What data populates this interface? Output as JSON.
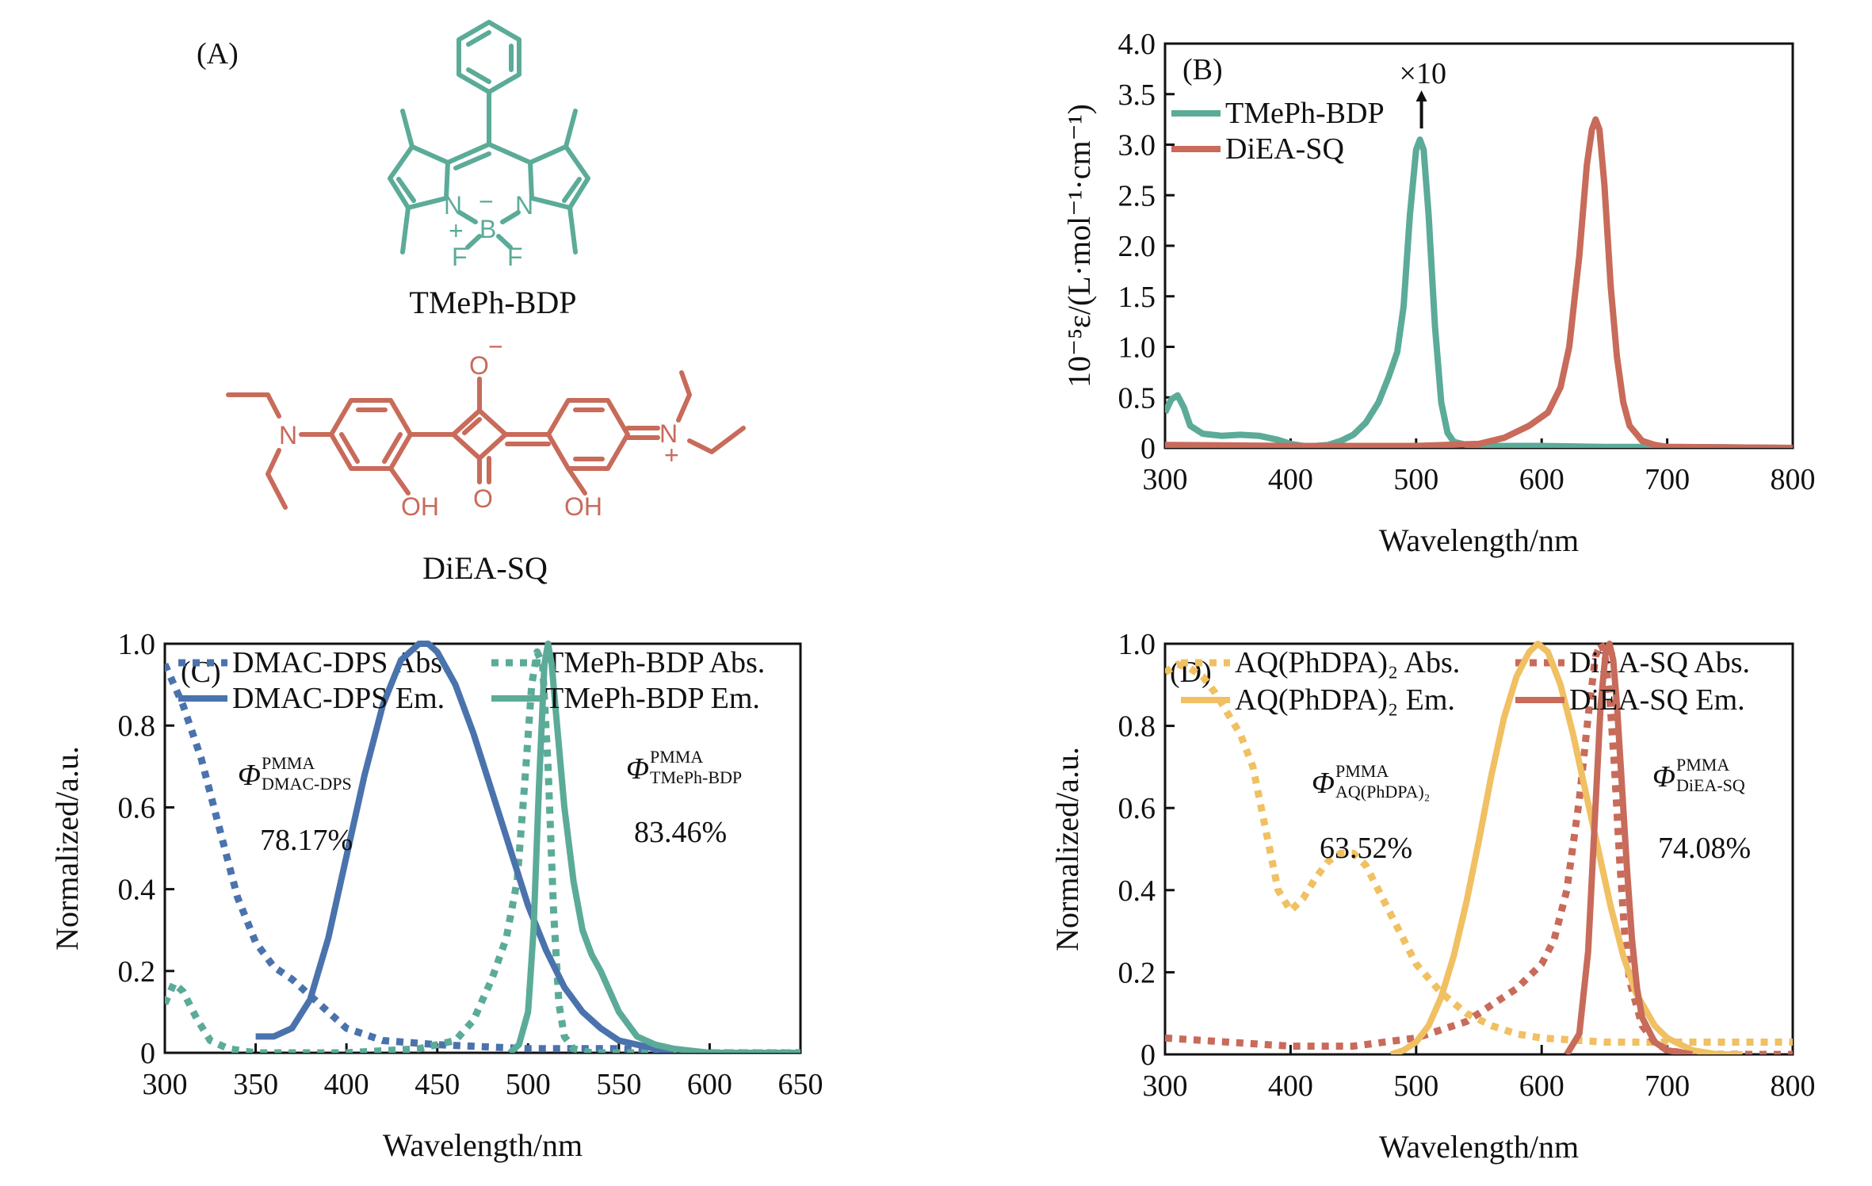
{
  "figure": {
    "panelA": {
      "letter": "(A)",
      "compound1": {
        "name": "TMePh-BDP",
        "color": "#5bab98",
        "atoms": {
          "n1": "N",
          "n2": "N",
          "b": "B",
          "f1": "F",
          "f2": "F",
          "plus": "+",
          "minus": "−"
        }
      },
      "compound2": {
        "name": "DiEA-SQ",
        "color": "#c86b5a",
        "atoms": {
          "n1": "N",
          "n2": "N",
          "o_top": "O",
          "o_top_charge": "−",
          "o_bottom": "O",
          "oh1": "OH",
          "oh2": "OH",
          "plus": "+"
        }
      }
    }
  },
  "chart_data": [
    {
      "id": "B",
      "type": "line",
      "letter": "(B)",
      "xlabel": "Wavelength/nm",
      "ylabel": "10⁻⁵ε/(L·mol⁻¹·cm⁻¹)",
      "xlim": [
        300,
        800
      ],
      "ylim": [
        0,
        4.0
      ],
      "xticks": [
        300,
        400,
        500,
        600,
        700,
        800
      ],
      "yticks": [
        0,
        0.5,
        1.0,
        1.5,
        2.0,
        2.5,
        3.0,
        3.5,
        4.0
      ],
      "ytick_labels": [
        "0",
        "0.5",
        "1.0",
        "1.5",
        "2.0",
        "2.5",
        "3.0",
        "3.5",
        "4.0"
      ],
      "annotation": "×10",
      "series": [
        {
          "name": "TMePh-BDP",
          "color": "#5bab98",
          "dash": "solid",
          "x": [
            300,
            305,
            310,
            315,
            320,
            330,
            345,
            360,
            375,
            390,
            400,
            410,
            420,
            430,
            440,
            450,
            460,
            470,
            478,
            485,
            490,
            495,
            500,
            503,
            506,
            510,
            515,
            520,
            525,
            530,
            540,
            560,
            600,
            650,
            700,
            800
          ],
          "y": [
            0.35,
            0.48,
            0.52,
            0.4,
            0.22,
            0.14,
            0.12,
            0.13,
            0.12,
            0.08,
            0.04,
            0.02,
            0.02,
            0.03,
            0.07,
            0.13,
            0.25,
            0.45,
            0.7,
            0.95,
            1.4,
            2.3,
            2.95,
            3.05,
            2.95,
            2.3,
            1.2,
            0.45,
            0.15,
            0.06,
            0.03,
            0.02,
            0.02,
            0.01,
            0.01,
            0.0
          ]
        },
        {
          "name": "DiEA-SQ",
          "color": "#c86b5a",
          "dash": "solid",
          "x": [
            300,
            400,
            500,
            550,
            570,
            590,
            605,
            615,
            622,
            630,
            636,
            640,
            643,
            646,
            650,
            655,
            660,
            665,
            670,
            680,
            690,
            700,
            800
          ],
          "y": [
            0.03,
            0.02,
            0.02,
            0.04,
            0.1,
            0.22,
            0.35,
            0.6,
            1.0,
            1.9,
            2.8,
            3.15,
            3.25,
            3.15,
            2.6,
            1.6,
            0.9,
            0.45,
            0.22,
            0.07,
            0.03,
            0.01,
            0.0
          ]
        }
      ]
    },
    {
      "id": "C",
      "type": "line",
      "letter": "(C)",
      "xlabel": "Wavelength/nm",
      "ylabel": "Normalized/a.u.",
      "xlim": [
        300,
        650
      ],
      "ylim": [
        0,
        1.0
      ],
      "xticks": [
        300,
        350,
        400,
        450,
        500,
        550,
        600,
        650
      ],
      "yticks": [
        0,
        0.2,
        0.4,
        0.6,
        0.8,
        1.0
      ],
      "ytick_labels": [
        "0",
        "0.2",
        "0.4",
        "0.6",
        "0.8",
        "1.0"
      ],
      "annotations": [
        {
          "symbol": "Φ",
          "sup": "PMMA",
          "sub": "DMAC-DPS",
          "value": "78.17%"
        },
        {
          "symbol": "Φ",
          "sup": "PMMA",
          "sub": "TMePh-BDP",
          "value": "83.46%"
        }
      ],
      "series": [
        {
          "name": "DMAC-DPS Abs.",
          "color": "#4a73ad",
          "dash": "dot",
          "x": [
            300,
            310,
            320,
            330,
            340,
            350,
            360,
            370,
            380,
            390,
            400,
            420,
            450,
            500,
            550,
            600,
            650
          ],
          "y": [
            0.95,
            0.85,
            0.72,
            0.55,
            0.38,
            0.27,
            0.21,
            0.18,
            0.14,
            0.1,
            0.06,
            0.03,
            0.02,
            0.01,
            0.01,
            0.0,
            0.0
          ]
        },
        {
          "name": "TMePh-BDP Abs.",
          "color": "#5bab98",
          "dash": "dot",
          "x": [
            300,
            305,
            310,
            318,
            325,
            335,
            350,
            400,
            440,
            460,
            470,
            480,
            488,
            494,
            498,
            502,
            505,
            508,
            511,
            514,
            517,
            520,
            525,
            535,
            560,
            650
          ],
          "y": [
            0.12,
            0.17,
            0.15,
            0.08,
            0.03,
            0.01,
            0.0,
            0.0,
            0.01,
            0.03,
            0.08,
            0.18,
            0.28,
            0.42,
            0.65,
            0.9,
            0.98,
            0.95,
            0.7,
            0.35,
            0.12,
            0.04,
            0.01,
            0.0,
            0.0,
            0.0
          ]
        },
        {
          "name": "DMAC-DPS Em.",
          "color": "#4a73ad",
          "dash": "solid",
          "x": [
            350,
            360,
            370,
            380,
            390,
            400,
            410,
            420,
            430,
            440,
            445,
            450,
            460,
            470,
            480,
            490,
            500,
            510,
            520,
            530,
            540,
            550,
            560,
            570,
            580
          ],
          "y": [
            0.04,
            0.04,
            0.06,
            0.13,
            0.28,
            0.48,
            0.68,
            0.85,
            0.96,
            1.0,
            1.0,
            0.98,
            0.9,
            0.78,
            0.64,
            0.5,
            0.36,
            0.25,
            0.16,
            0.1,
            0.06,
            0.03,
            0.02,
            0.01,
            0.0
          ]
        },
        {
          "name": "TMePh-BDP Em.",
          "color": "#5bab98",
          "dash": "solid",
          "x": [
            490,
            495,
            500,
            503,
            506,
            509,
            511,
            513,
            516,
            520,
            525,
            530,
            535,
            540,
            545,
            550,
            560,
            570,
            580,
            600,
            650
          ],
          "y": [
            0.0,
            0.02,
            0.1,
            0.3,
            0.65,
            0.95,
            1.0,
            0.95,
            0.8,
            0.6,
            0.42,
            0.3,
            0.24,
            0.2,
            0.15,
            0.1,
            0.04,
            0.02,
            0.01,
            0.0,
            0.0
          ]
        }
      ]
    },
    {
      "id": "D",
      "type": "line",
      "letter": "(D)",
      "xlabel": "Wavelength/nm",
      "ylabel": "Normalized/a.u.",
      "xlim": [
        300,
        800
      ],
      "ylim": [
        0,
        1.0
      ],
      "xticks": [
        300,
        400,
        500,
        600,
        700,
        800
      ],
      "yticks": [
        0,
        0.2,
        0.4,
        0.6,
        0.8,
        1.0
      ],
      "ytick_labels": [
        "0",
        "0.2",
        "0.4",
        "0.6",
        "0.8",
        "1.0"
      ],
      "annotations": [
        {
          "symbol": "Φ",
          "sup": "PMMA",
          "sub": "AQ(PhDPA)₂",
          "value": "63.52%"
        },
        {
          "symbol": "Φ",
          "sup": "PMMA",
          "sub": "DiEA-SQ",
          "value": "74.08%"
        }
      ],
      "series": [
        {
          "name": "AQ(PhDPA)₂ Abs.",
          "color": "#f0c062",
          "dash": "dot",
          "x": [
            300,
            310,
            320,
            330,
            340,
            350,
            360,
            370,
            380,
            390,
            400,
            410,
            420,
            430,
            440,
            450,
            460,
            470,
            480,
            490,
            500,
            520,
            540,
            560,
            580,
            600,
            650,
            700,
            750,
            800
          ],
          "y": [
            0.93,
            0.95,
            0.94,
            0.92,
            0.88,
            0.83,
            0.78,
            0.7,
            0.55,
            0.4,
            0.35,
            0.38,
            0.43,
            0.47,
            0.49,
            0.49,
            0.46,
            0.4,
            0.34,
            0.28,
            0.22,
            0.15,
            0.1,
            0.07,
            0.05,
            0.04,
            0.03,
            0.03,
            0.03,
            0.03
          ]
        },
        {
          "name": "DiEA-SQ Abs.",
          "color": "#c86b5a",
          "dash": "dot",
          "x": [
            300,
            350,
            400,
            450,
            500,
            540,
            560,
            580,
            600,
            610,
            620,
            630,
            638,
            643,
            647,
            650,
            654,
            658,
            662,
            666,
            670,
            680,
            690,
            700,
            720,
            800
          ],
          "y": [
            0.04,
            0.03,
            0.02,
            0.02,
            0.04,
            0.08,
            0.12,
            0.16,
            0.22,
            0.28,
            0.4,
            0.62,
            0.85,
            0.97,
            1.0,
            0.98,
            0.88,
            0.7,
            0.48,
            0.3,
            0.18,
            0.07,
            0.03,
            0.01,
            0.0,
            0.0
          ]
        },
        {
          "name": "AQ(PhDPA)₂ Em.",
          "color": "#f0c062",
          "dash": "solid",
          "x": [
            480,
            490,
            500,
            510,
            520,
            530,
            540,
            550,
            560,
            570,
            580,
            590,
            597,
            605,
            615,
            625,
            635,
            645,
            655,
            665,
            675,
            690,
            700,
            720,
            740,
            760
          ],
          "y": [
            0.0,
            0.01,
            0.03,
            0.07,
            0.14,
            0.24,
            0.37,
            0.52,
            0.68,
            0.82,
            0.92,
            0.98,
            1.0,
            0.98,
            0.9,
            0.78,
            0.64,
            0.5,
            0.36,
            0.24,
            0.15,
            0.07,
            0.04,
            0.01,
            0.0,
            0.0
          ]
        },
        {
          "name": "DiEA-SQ Em.",
          "color": "#c86b5a",
          "dash": "solid",
          "x": [
            620,
            630,
            637,
            642,
            647,
            651,
            654,
            657,
            660,
            664,
            668,
            672,
            676,
            680,
            690,
            700,
            720
          ],
          "y": [
            0.0,
            0.05,
            0.25,
            0.55,
            0.85,
            0.98,
            1.0,
            0.96,
            0.85,
            0.65,
            0.45,
            0.28,
            0.16,
            0.09,
            0.03,
            0.01,
            0.0
          ]
        }
      ]
    }
  ]
}
